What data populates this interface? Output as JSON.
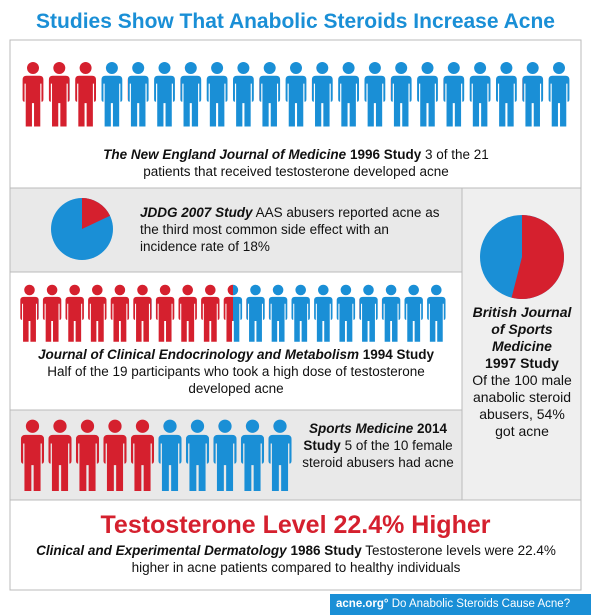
{
  "title": "Studies Show That Anabolic Steroids Increase Acne",
  "studies": [
    {
      "journal": "The New England Journal of Medicine",
      "study": "1996 Study",
      "text": "3 of the 21 patients that received testosterone developed acne",
      "affected": 3,
      "total": 21
    },
    {
      "journal": "JDDG",
      "study": "2007 Study",
      "text": "AAS abusers reported acne as the third most common side effect with an incidence rate of 18%",
      "percent": 18
    },
    {
      "journal": "Journal of Clinical Endocrinology and Metabolism",
      "study": "1994 Study",
      "text": "Half of the 19 participants who took a high dose of testosterone developed acne",
      "affected": 9.5,
      "total": 19
    },
    {
      "journal": "Sports Medicine",
      "study": "2014 Study",
      "text": "5 of the 10 female steroid abusers had acne",
      "affected": 5,
      "total": 10
    },
    {
      "journal": "British Journal of Sports Medicine",
      "study": "1997 Study",
      "text": "Of the 100 male anabolic steroid abusers, 54% got acne",
      "percent": 54
    },
    {
      "headline": "Testosterone Level 22.4% Higher",
      "journal": "Clinical and Experimental Dermatology",
      "study": "1986 Study",
      "text": "Testosterone levels were 22.4% higher in acne patients compared to healthy individuals"
    }
  ],
  "footer": {
    "site": "acne.org°",
    "caption": "Do Anabolic Steroids Cause Acne?"
  }
}
